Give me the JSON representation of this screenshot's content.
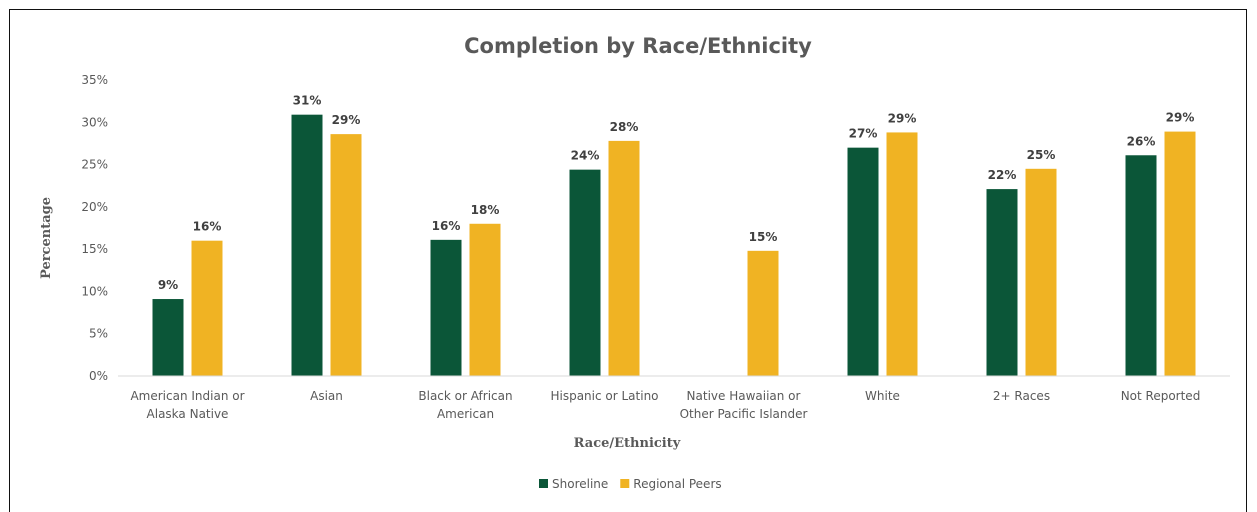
{
  "chart_data": {
    "type": "bar",
    "title": "Completion by Race/Ethnicity",
    "xlabel": "Race/Ethnicity",
    "ylabel": "Percentage",
    "categories": [
      [
        "American Indian or",
        "Alaska Native"
      ],
      [
        "Asian"
      ],
      [
        "Black or African",
        "American"
      ],
      [
        "Hispanic or Latino"
      ],
      [
        "Native Hawaiian or",
        "Other Pacific Islander"
      ],
      [
        "White"
      ],
      [
        "2+ Races"
      ],
      [
        "Not Reported"
      ]
    ],
    "series": [
      {
        "name": "Shoreline",
        "color": "#0B5638",
        "values": [
          9,
          31,
          16,
          24,
          null,
          27,
          22,
          26
        ],
        "display_values": [
          9.1,
          30.9,
          16.1,
          24.4,
          null,
          27.0,
          22.1,
          26.1
        ]
      },
      {
        "name": "Regional Peers",
        "color": "#F0B323",
        "values": [
          16,
          29,
          18,
          28,
          15,
          29,
          25,
          29
        ],
        "display_values": [
          16.0,
          28.6,
          18.0,
          27.8,
          14.8,
          28.8,
          24.5,
          28.9
        ]
      }
    ],
    "ylim": [
      0,
      35
    ],
    "yticks": [
      0,
      5,
      10,
      15,
      20,
      25,
      30,
      35
    ],
    "ytick_suffix": "%",
    "value_suffix": "%",
    "grid": false,
    "legend_position": "bottom-center"
  }
}
